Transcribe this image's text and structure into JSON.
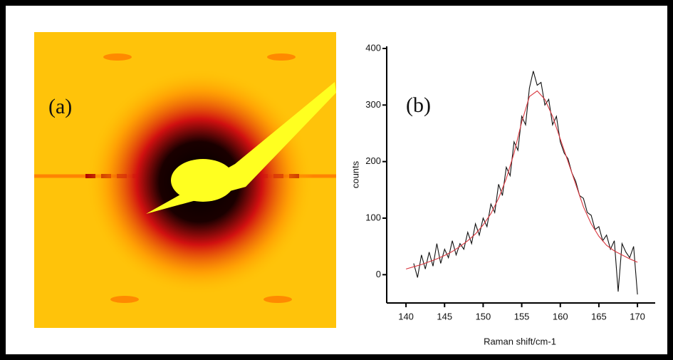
{
  "panel_a": {
    "label": "(a)"
  },
  "chart_data": {
    "type": "line",
    "annotation": "(b)",
    "xlabel": "Raman shift/cm-1",
    "ylabel": "counts",
    "xlim": [
      137.5,
      172.3
    ],
    "xticks": [
      140,
      145,
      150,
      155,
      160,
      165,
      170
    ],
    "ylim": [
      -50,
      400
    ],
    "yticks": [
      0,
      100,
      200,
      300,
      400
    ],
    "series": [
      {
        "color": "#111111",
        "x": [
          141,
          141.5,
          142,
          142.5,
          143,
          143.5,
          144,
          144.5,
          145,
          145.5,
          146,
          146.5,
          147,
          147.5,
          148,
          148.5,
          149,
          149.5,
          150,
          150.5,
          151,
          151.5,
          152,
          152.5,
          153,
          153.5,
          154,
          154.5,
          155,
          155.5,
          156,
          156.5,
          157,
          157.5,
          158,
          158.5,
          159,
          159.5,
          160,
          160.5,
          161,
          161.5,
          162,
          162.5,
          163,
          163.5,
          164,
          164.5,
          165,
          165.5,
          166,
          166.5,
          167,
          167.5,
          168,
          168.5,
          169,
          169.5,
          170
        ],
        "values": [
          20,
          -5,
          35,
          10,
          40,
          15,
          55,
          20,
          45,
          30,
          60,
          35,
          55,
          45,
          75,
          55,
          90,
          70,
          100,
          85,
          125,
          110,
          160,
          140,
          190,
          175,
          235,
          220,
          280,
          265,
          330,
          360,
          335,
          340,
          300,
          310,
          265,
          280,
          235,
          215,
          205,
          180,
          165,
          140,
          135,
          110,
          105,
          80,
          85,
          60,
          70,
          45,
          60,
          -30,
          55,
          40,
          30,
          50,
          -35
        ]
      },
      {
        "color": "#d9363e",
        "x": [
          140,
          141,
          142,
          143,
          144,
          145,
          146,
          147,
          148,
          149,
          150,
          151,
          152,
          153,
          154,
          155,
          156,
          157,
          158,
          159,
          160,
          161,
          162,
          163,
          164,
          165,
          166,
          167,
          168,
          169,
          170
        ],
        "values": [
          10,
          14,
          18,
          23,
          28,
          34,
          41,
          50,
          60,
          72,
          88,
          108,
          135,
          170,
          215,
          270,
          315,
          325,
          310,
          280,
          240,
          200,
          160,
          120,
          90,
          68,
          52,
          42,
          35,
          28,
          22
        ]
      }
    ]
  }
}
